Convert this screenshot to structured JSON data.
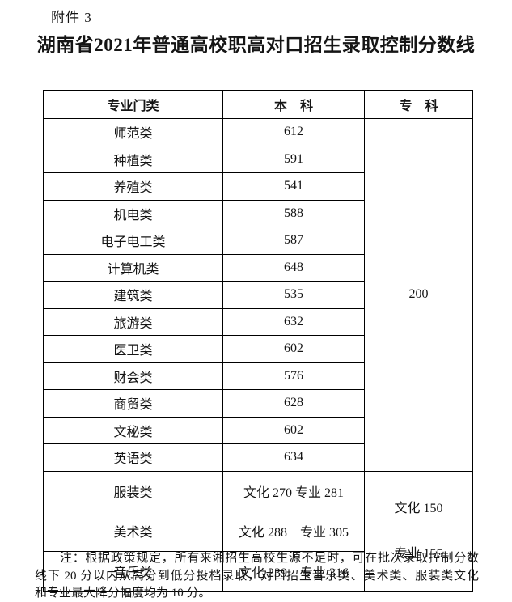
{
  "page": {
    "attachment_label": "附件 3",
    "title": "湖南省2021年普通高校职高对口招生录取控制分数线"
  },
  "table": {
    "headers": {
      "category": "专业门类",
      "undergraduate": "本　科",
      "college": "专　科"
    },
    "rows": [
      {
        "category": "师范类",
        "benke": "612"
      },
      {
        "category": "种植类",
        "benke": "591"
      },
      {
        "category": "养殖类",
        "benke": "541"
      },
      {
        "category": "机电类",
        "benke": "588"
      },
      {
        "category": "电子电工类",
        "benke": "587"
      },
      {
        "category": "计算机类",
        "benke": "648"
      },
      {
        "category": "建筑类",
        "benke": "535"
      },
      {
        "category": "旅游类",
        "benke": "632"
      },
      {
        "category": "医卫类",
        "benke": "602"
      },
      {
        "category": "财会类",
        "benke": "576"
      },
      {
        "category": "商贸类",
        "benke": "628"
      },
      {
        "category": "文秘类",
        "benke": "602"
      },
      {
        "category": "英语类",
        "benke": "634"
      }
    ],
    "zhuanke_merged": "200",
    "bottom_rows": [
      {
        "category": "服装类",
        "benke": "文化 270 专业 281"
      },
      {
        "category": "美术类",
        "benke": "文化 288　专业 305"
      },
      {
        "category": "音乐类",
        "benke": "文化 239　专业 316"
      }
    ],
    "zhuanke_bottom": {
      "line1": "文化 150",
      "line2": "专业 155"
    }
  },
  "note": {
    "line1": "注：根据政策规定，所有来湘招生高校生源不足时，可在批次录取控制分数",
    "line2": "线下 20 分以内从高分到低分投档录取，对口招生音乐类、美术类、服装类文化",
    "line3": "和专业最大降分幅度均为 10 分。"
  }
}
